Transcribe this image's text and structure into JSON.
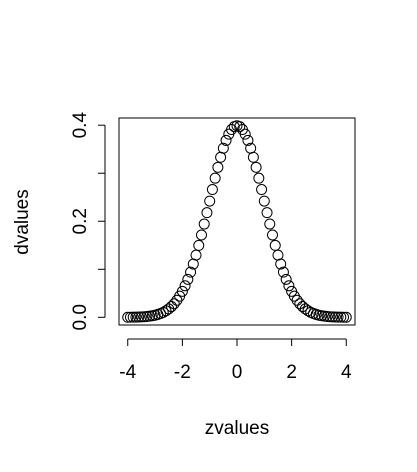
{
  "chart_data": {
    "type": "scatter",
    "title": "",
    "xlabel": "zvalues",
    "ylabel": "dvalues",
    "x_ticks": [
      "-4",
      "-2",
      "0",
      "2",
      "4"
    ],
    "y_ticks": [
      "0.0",
      "0.2",
      "0.4"
    ],
    "xlim": [
      -4.32,
      4.32
    ],
    "ylim": [
      -0.016,
      0.415
    ],
    "marker": "open-circle",
    "series": [
      {
        "x": [
          -4.0,
          -3.9,
          -3.8,
          -3.7,
          -3.6,
          -3.5,
          -3.4,
          -3.3,
          -3.2,
          -3.1,
          -3.0,
          -2.9,
          -2.8,
          -2.7,
          -2.6,
          -2.5,
          -2.4,
          -2.3,
          -2.2,
          -2.1,
          -2.0,
          -1.9,
          -1.8,
          -1.7,
          -1.6,
          -1.5,
          -1.4,
          -1.3,
          -1.2,
          -1.1,
          -1.0,
          -0.9,
          -0.8,
          -0.7,
          -0.6,
          -0.5,
          -0.4,
          -0.3,
          -0.2,
          -0.1,
          0.0,
          0.1,
          0.2,
          0.3,
          0.4,
          0.5,
          0.6,
          0.7,
          0.8,
          0.9,
          1.0,
          1.1,
          1.2,
          1.3,
          1.4,
          1.5,
          1.6,
          1.7,
          1.8,
          1.9,
          2.0,
          2.1,
          2.2,
          2.3,
          2.4,
          2.5,
          2.6,
          2.7,
          2.8,
          2.9,
          3.0,
          3.1,
          3.2,
          3.3,
          3.4,
          3.5,
          3.6,
          3.7,
          3.8,
          3.9,
          4.0
        ],
        "y": [
          0.0001,
          0.0002,
          0.0003,
          0.0004,
          0.0006,
          0.0009,
          0.0012,
          0.0017,
          0.0024,
          0.0033,
          0.0044,
          0.006,
          0.0079,
          0.0104,
          0.0136,
          0.0175,
          0.0224,
          0.0283,
          0.0355,
          0.044,
          0.054,
          0.0656,
          0.079,
          0.094,
          0.1109,
          0.1295,
          0.1497,
          0.1714,
          0.1942,
          0.2179,
          0.242,
          0.2661,
          0.2897,
          0.3123,
          0.3332,
          0.3521,
          0.3683,
          0.3814,
          0.391,
          0.397,
          0.3989,
          0.397,
          0.391,
          0.3814,
          0.3683,
          0.3521,
          0.3332,
          0.3123,
          0.2897,
          0.2661,
          0.242,
          0.2179,
          0.1942,
          0.1714,
          0.1497,
          0.1295,
          0.1109,
          0.094,
          0.079,
          0.0656,
          0.054,
          0.044,
          0.0355,
          0.0283,
          0.0224,
          0.0175,
          0.0136,
          0.0104,
          0.0079,
          0.006,
          0.0044,
          0.0033,
          0.0024,
          0.0017,
          0.0012,
          0.0009,
          0.0006,
          0.0004,
          0.0003,
          0.0002,
          0.0001
        ]
      }
    ]
  }
}
